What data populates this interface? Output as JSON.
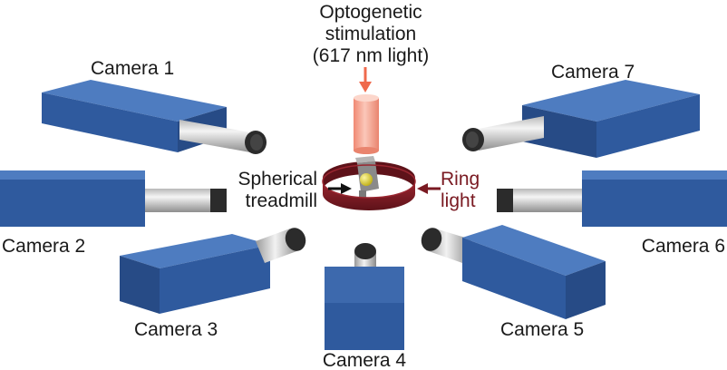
{
  "stimulation": {
    "line1": "Optogenetic",
    "line2": "stimulation",
    "line3": "(617 nm light)"
  },
  "treadmill": {
    "line1": "Spherical",
    "line2": "treadmill"
  },
  "ring_light": {
    "line1": "Ring",
    "line2": "light"
  },
  "cameras": {
    "c1": "Camera 1",
    "c2": "Camera 2",
    "c3": "Camera 3",
    "c4": "Camera 4",
    "c5": "Camera 5",
    "c6": "Camera 6",
    "c7": "Camera 7"
  },
  "colors": {
    "camera_body": "#2f5a9e",
    "lens_barrel": "#d2d2d2",
    "lens_cap": "#2b2b2b",
    "stim_light": "#f4a898",
    "stim_arrow": "#ef6a4c",
    "ring": "#7a1a22",
    "ball": "#d7cc2a"
  }
}
